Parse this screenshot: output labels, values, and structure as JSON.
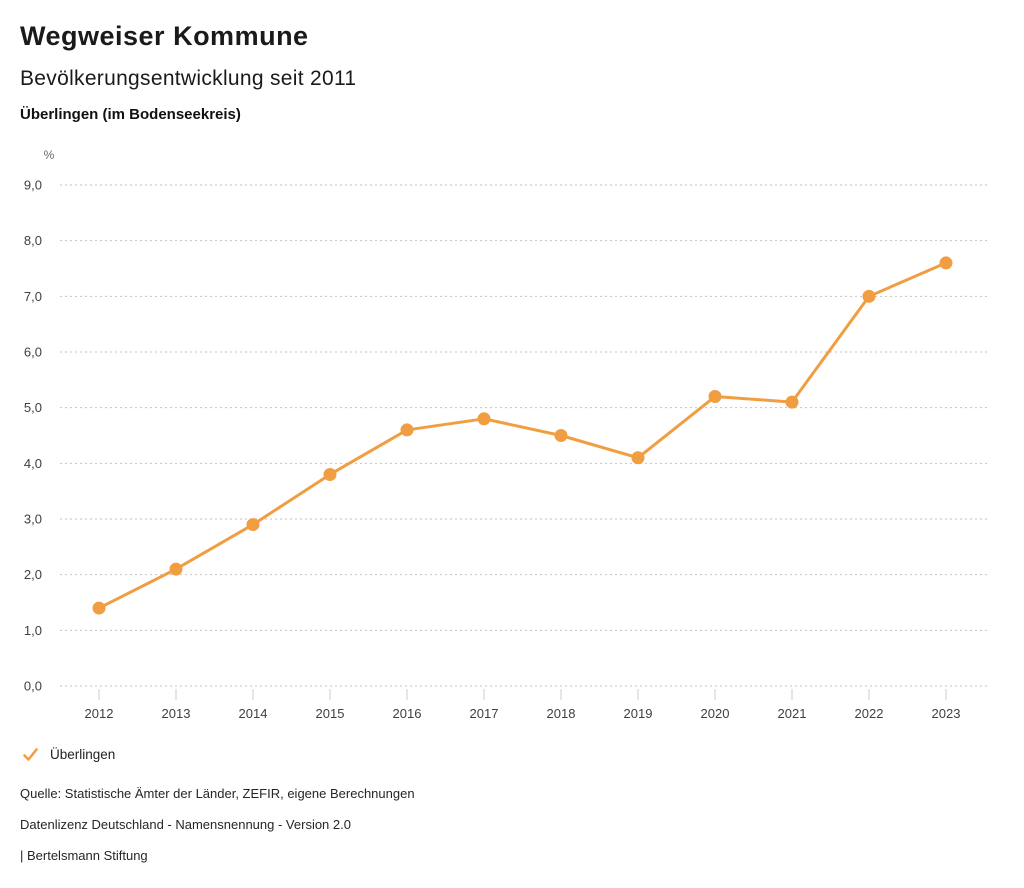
{
  "header": {
    "title": "Wegweiser Kommune",
    "subtitle": "Bevölkerungsentwicklung seit 2011",
    "region": "Überlingen (im Bodenseekreis)"
  },
  "chart_data": {
    "type": "line",
    "title": "Bevölkerungsentwicklung seit 2011",
    "unit_label": "%",
    "categories": [
      "2012",
      "2013",
      "2014",
      "2015",
      "2016",
      "2017",
      "2018",
      "2019",
      "2020",
      "2021",
      "2022",
      "2023"
    ],
    "series": [
      {
        "name": "Überlingen",
        "values": [
          1.4,
          2.1,
          2.9,
          3.8,
          4.6,
          4.8,
          4.5,
          4.1,
          5.2,
          5.1,
          7.0,
          7.6
        ],
        "color": "#F09E41"
      }
    ],
    "ylim": [
      0,
      9
    ],
    "ytick_step": 1,
    "ytick_labels": [
      "0,0",
      "1,0",
      "2,0",
      "3,0",
      "4,0",
      "5,0",
      "6,0",
      "7,0",
      "8,0",
      "9,0"
    ],
    "grid": "dotted-horizontal",
    "legend_position": "bottom-left",
    "colors": {
      "gridline": "#c2c2c2",
      "tick": "#cccccc",
      "axis_text": "#404040",
      "unit_text": "#666666"
    }
  },
  "legend": {
    "items": [
      {
        "label": "Überlingen",
        "color": "#F09E41",
        "icon": "check"
      }
    ]
  },
  "footer": {
    "source": "Quelle: Statistische Ämter der Länder, ZEFIR, eigene Berechnungen",
    "license": "Datenlizenz Deutschland - Namensnennung - Version 2.0",
    "publisher": "| Bertelsmann Stiftung"
  }
}
